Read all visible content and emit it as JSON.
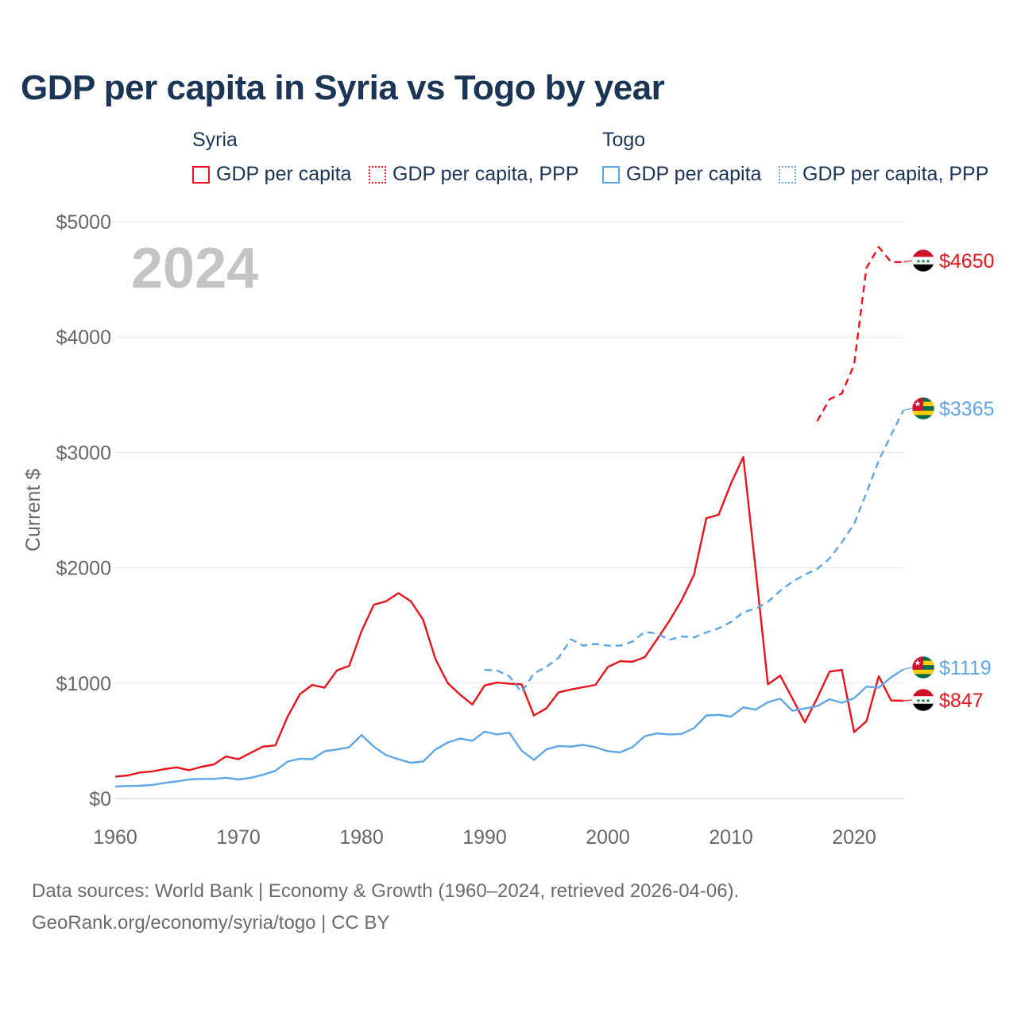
{
  "title": "GDP per capita in Syria vs Togo by year",
  "legend": {
    "groups": [
      {
        "name": "Syria",
        "items": [
          {
            "label": "GDP per capita",
            "color": "#e8131b",
            "style": "solid"
          },
          {
            "label": "GDP per capita, PPP",
            "color": "#e8131b",
            "style": "dotted"
          }
        ]
      },
      {
        "name": "Togo",
        "items": [
          {
            "label": "GDP per capita",
            "color": "#5ea6e6",
            "style": "solid"
          },
          {
            "label": "GDP per capita, PPP",
            "color": "#5ea6e6",
            "style": "dotted"
          }
        ]
      }
    ]
  },
  "chart_data": {
    "type": "line",
    "title": "GDP per capita in Syria vs Togo by year",
    "ylabel": "Current $",
    "xlabel": "",
    "year_label": "2024",
    "xlim": [
      1960,
      2024
    ],
    "ylim": [
      0,
      5000
    ],
    "x_ticks": [
      1960,
      1970,
      1980,
      1990,
      2000,
      2010,
      2020
    ],
    "y_ticks": [
      0,
      1000,
      2000,
      3000,
      4000,
      5000
    ],
    "y_tick_labels": [
      "$0",
      "$1000",
      "$2000",
      "$3000",
      "$4000",
      "$5000"
    ],
    "series": [
      {
        "name": "Syria GDP per capita",
        "color": "#e8131b",
        "dash": "solid",
        "end_label": "$847",
        "points": [
          [
            1960,
            190
          ],
          [
            1961,
            200
          ],
          [
            1962,
            225
          ],
          [
            1963,
            235
          ],
          [
            1964,
            255
          ],
          [
            1965,
            270
          ],
          [
            1966,
            245
          ],
          [
            1967,
            275
          ],
          [
            1968,
            295
          ],
          [
            1969,
            365
          ],
          [
            1970,
            340
          ],
          [
            1971,
            395
          ],
          [
            1972,
            450
          ],
          [
            1973,
            460
          ],
          [
            1974,
            710
          ],
          [
            1975,
            905
          ],
          [
            1976,
            985
          ],
          [
            1977,
            960
          ],
          [
            1978,
            1110
          ],
          [
            1979,
            1150
          ],
          [
            1980,
            1450
          ],
          [
            1981,
            1680
          ],
          [
            1982,
            1710
          ],
          [
            1983,
            1780
          ],
          [
            1984,
            1710
          ],
          [
            1985,
            1550
          ],
          [
            1986,
            1210
          ],
          [
            1987,
            1000
          ],
          [
            1988,
            900
          ],
          [
            1989,
            815
          ],
          [
            1990,
            980
          ],
          [
            1991,
            1005
          ],
          [
            1992,
            995
          ],
          [
            1993,
            990
          ],
          [
            1994,
            720
          ],
          [
            1995,
            780
          ],
          [
            1996,
            920
          ],
          [
            1997,
            945
          ],
          [
            1998,
            965
          ],
          [
            1999,
            985
          ],
          [
            2000,
            1140
          ],
          [
            2001,
            1190
          ],
          [
            2002,
            1185
          ],
          [
            2003,
            1225
          ],
          [
            2004,
            1380
          ],
          [
            2005,
            1540
          ],
          [
            2006,
            1720
          ],
          [
            2007,
            1940
          ],
          [
            2008,
            2430
          ],
          [
            2009,
            2460
          ],
          [
            2010,
            2730
          ],
          [
            2011,
            2960
          ],
          [
            2012,
            1990
          ],
          [
            2013,
            990
          ],
          [
            2014,
            1065
          ],
          [
            2015,
            865
          ],
          [
            2016,
            660
          ],
          [
            2017,
            870
          ],
          [
            2018,
            1100
          ],
          [
            2019,
            1115
          ],
          [
            2020,
            575
          ],
          [
            2021,
            670
          ],
          [
            2022,
            1060
          ],
          [
            2023,
            850
          ],
          [
            2024,
            847
          ]
        ]
      },
      {
        "name": "Syria GDP per capita, PPP",
        "color": "#e8131b",
        "dash": "dashed",
        "end_label": "$4650",
        "points": [
          [
            2017,
            3270
          ],
          [
            2018,
            3460
          ],
          [
            2019,
            3510
          ],
          [
            2020,
            3760
          ],
          [
            2021,
            4600
          ],
          [
            2022,
            4780
          ],
          [
            2023,
            4650
          ],
          [
            2024,
            4650
          ]
        ]
      },
      {
        "name": "Togo GDP per capita",
        "color": "#5ea6e6",
        "dash": "solid",
        "end_label": "$1119",
        "points": [
          [
            1960,
            105
          ],
          [
            1961,
            108
          ],
          [
            1962,
            110
          ],
          [
            1963,
            118
          ],
          [
            1964,
            135
          ],
          [
            1965,
            148
          ],
          [
            1966,
            165
          ],
          [
            1967,
            170
          ],
          [
            1968,
            170
          ],
          [
            1969,
            180
          ],
          [
            1970,
            165
          ],
          [
            1971,
            180
          ],
          [
            1972,
            205
          ],
          [
            1973,
            240
          ],
          [
            1974,
            320
          ],
          [
            1975,
            345
          ],
          [
            1976,
            340
          ],
          [
            1977,
            410
          ],
          [
            1978,
            425
          ],
          [
            1979,
            445
          ],
          [
            1980,
            550
          ],
          [
            1981,
            450
          ],
          [
            1982,
            375
          ],
          [
            1983,
            340
          ],
          [
            1984,
            310
          ],
          [
            1985,
            320
          ],
          [
            1986,
            425
          ],
          [
            1987,
            485
          ],
          [
            1988,
            520
          ],
          [
            1989,
            500
          ],
          [
            1990,
            580
          ],
          [
            1991,
            555
          ],
          [
            1992,
            570
          ],
          [
            1993,
            415
          ],
          [
            1994,
            335
          ],
          [
            1995,
            425
          ],
          [
            1996,
            455
          ],
          [
            1997,
            450
          ],
          [
            1998,
            465
          ],
          [
            1999,
            445
          ],
          [
            2000,
            410
          ],
          [
            2001,
            400
          ],
          [
            2002,
            445
          ],
          [
            2003,
            540
          ],
          [
            2004,
            565
          ],
          [
            2005,
            555
          ],
          [
            2006,
            560
          ],
          [
            2007,
            610
          ],
          [
            2008,
            720
          ],
          [
            2009,
            725
          ],
          [
            2010,
            710
          ],
          [
            2011,
            790
          ],
          [
            2012,
            770
          ],
          [
            2013,
            835
          ],
          [
            2014,
            865
          ],
          [
            2015,
            760
          ],
          [
            2016,
            780
          ],
          [
            2017,
            800
          ],
          [
            2018,
            860
          ],
          [
            2019,
            830
          ],
          [
            2020,
            870
          ],
          [
            2021,
            970
          ],
          [
            2022,
            960
          ],
          [
            2023,
            1050
          ],
          [
            2024,
            1119
          ]
        ]
      },
      {
        "name": "Togo GDP per capita, PPP",
        "color": "#5ea6e6",
        "dash": "dashed",
        "end_label": "$3365",
        "points": [
          [
            1990,
            1115
          ],
          [
            1991,
            1110
          ],
          [
            1992,
            1060
          ],
          [
            1993,
            920
          ],
          [
            1994,
            1085
          ],
          [
            1995,
            1140
          ],
          [
            1996,
            1220
          ],
          [
            1997,
            1380
          ],
          [
            1998,
            1325
          ],
          [
            1999,
            1340
          ],
          [
            2000,
            1325
          ],
          [
            2001,
            1325
          ],
          [
            2002,
            1360
          ],
          [
            2003,
            1445
          ],
          [
            2004,
            1430
          ],
          [
            2005,
            1375
          ],
          [
            2006,
            1405
          ],
          [
            2007,
            1395
          ],
          [
            2008,
            1440
          ],
          [
            2009,
            1475
          ],
          [
            2010,
            1530
          ],
          [
            2011,
            1615
          ],
          [
            2012,
            1645
          ],
          [
            2013,
            1705
          ],
          [
            2014,
            1800
          ],
          [
            2015,
            1880
          ],
          [
            2016,
            1940
          ],
          [
            2017,
            1990
          ],
          [
            2018,
            2080
          ],
          [
            2019,
            2220
          ],
          [
            2020,
            2380
          ],
          [
            2021,
            2650
          ],
          [
            2022,
            2930
          ],
          [
            2023,
            3150
          ],
          [
            2024,
            3365
          ]
        ]
      }
    ]
  },
  "footer": {
    "line1": "Data sources: World Bank | Economy & Growth (1960–2024, retrieved 2026-04-06).",
    "line2": "GeoRank.org/economy/syria/togo | CC BY"
  }
}
